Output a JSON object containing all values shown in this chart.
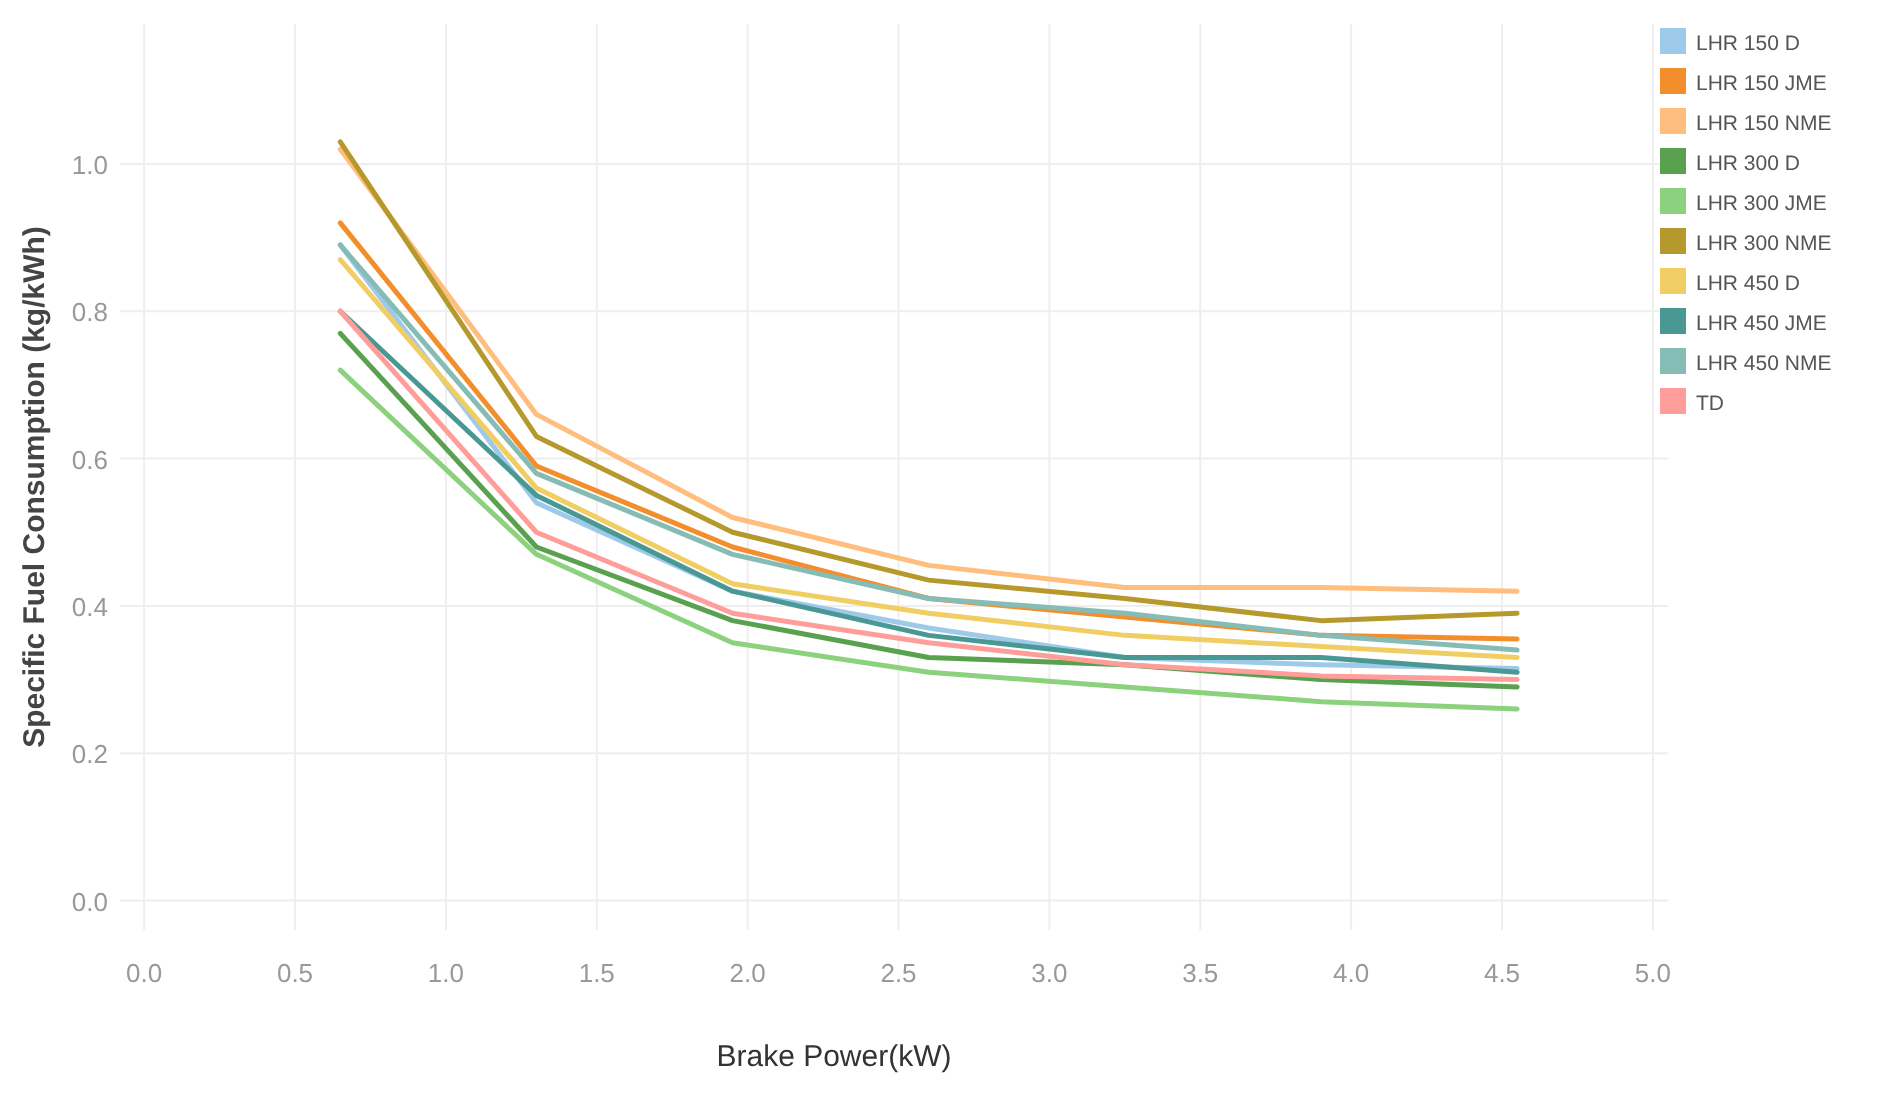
{
  "chart_data": {
    "type": "line",
    "xlabel": "Brake Power(kW)",
    "ylabel": "Specific Fuel Consumption (kg/kWh)",
    "x": [
      0.65,
      1.3,
      1.95,
      2.6,
      3.25,
      3.9,
      4.55
    ],
    "xlim": [
      -0.08,
      5.05
    ],
    "xticks": [
      {
        "value": 0,
        "label": "0.0"
      },
      {
        "value": 0.5,
        "label": "0.5"
      },
      {
        "value": 1,
        "label": "1.0"
      },
      {
        "value": 1.5,
        "label": "1.5"
      },
      {
        "value": 2,
        "label": "2.0"
      },
      {
        "value": 2.5,
        "label": "2.5"
      },
      {
        "value": 3,
        "label": "3.0"
      },
      {
        "value": 3.5,
        "label": "3.5"
      },
      {
        "value": 4,
        "label": "4.0"
      },
      {
        "value": 4.5,
        "label": "4.5"
      },
      {
        "value": 5,
        "label": "5.0"
      }
    ],
    "ylim": [
      -0.04,
      1.19
    ],
    "yticks": [
      {
        "value": 0,
        "label": "0.0"
      },
      {
        "value": 0.2,
        "label": "0.2"
      },
      {
        "value": 0.4,
        "label": "0.4"
      },
      {
        "value": 0.6,
        "label": "0.6"
      },
      {
        "value": 0.8,
        "label": "0.8"
      },
      {
        "value": 1,
        "label": "1.0"
      }
    ],
    "grid": true,
    "legend": "right",
    "marker": "none",
    "line_style": "solid",
    "series": [
      {
        "name": "LHR 150 D",
        "color": "#9ecae9",
        "values": [
          0.89,
          0.54,
          0.42,
          0.37,
          0.33,
          0.32,
          0.315
        ]
      },
      {
        "name": "LHR 150 JME",
        "color": "#f28e2b",
        "values": [
          0.92,
          0.59,
          0.48,
          0.41,
          0.385,
          0.36,
          0.355
        ]
      },
      {
        "name": "LHR 150 NME",
        "color": "#ffbe7d",
        "values": [
          1.02,
          0.66,
          0.52,
          0.455,
          0.425,
          0.425,
          0.42
        ]
      },
      {
        "name": "LHR 300 D",
        "color": "#59a14f",
        "values": [
          0.77,
          0.48,
          0.38,
          0.33,
          0.32,
          0.3,
          0.29
        ]
      },
      {
        "name": "LHR 300 JME",
        "color": "#8cd17d",
        "values": [
          0.72,
          0.47,
          0.35,
          0.31,
          0.29,
          0.27,
          0.26
        ]
      },
      {
        "name": "LHR 300 NME",
        "color": "#b6992d",
        "values": [
          1.03,
          0.63,
          0.5,
          0.435,
          0.41,
          0.38,
          0.39
        ]
      },
      {
        "name": "LHR 450 D",
        "color": "#f1ce63",
        "values": [
          0.87,
          0.56,
          0.43,
          0.39,
          0.36,
          0.345,
          0.33
        ]
      },
      {
        "name": "LHR 450 JME",
        "color": "#499894",
        "values": [
          0.8,
          0.55,
          0.42,
          0.36,
          0.33,
          0.33,
          0.31
        ]
      },
      {
        "name": "LHR 450 NME",
        "color": "#86bcb6",
        "values": [
          0.89,
          0.58,
          0.47,
          0.41,
          0.39,
          0.36,
          0.34
        ]
      },
      {
        "name": "TD",
        "color": "#ff9d9a",
        "values": [
          0.8,
          0.5,
          0.39,
          0.35,
          0.32,
          0.305,
          0.3
        ]
      }
    ]
  }
}
